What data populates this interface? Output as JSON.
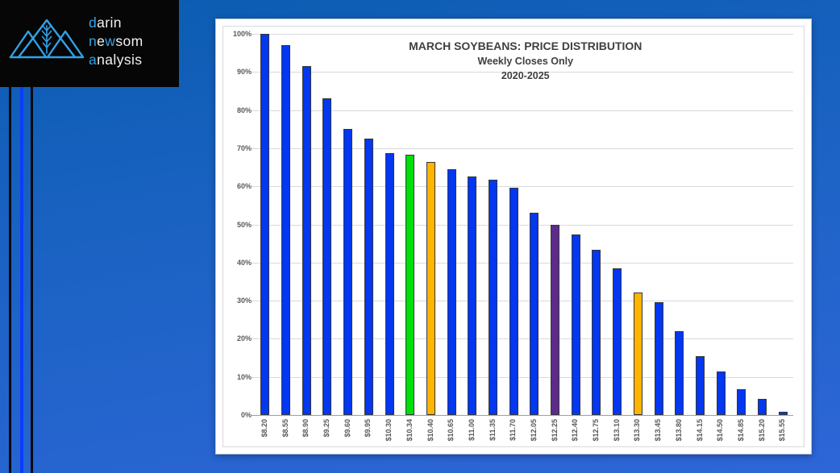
{
  "brand": {
    "accent_color": "#31a2e8",
    "lines": [
      [
        {
          "t": "d",
          "accent": true
        },
        {
          "t": "arin",
          "accent": false
        }
      ],
      [
        {
          "t": "n",
          "accent": true
        },
        {
          "t": "e",
          "accent": false
        },
        {
          "t": "w",
          "accent": true
        },
        {
          "t": "som",
          "accent": false
        }
      ],
      [
        {
          "t": "a",
          "accent": true
        },
        {
          "t": "nalysis",
          "accent": false
        }
      ]
    ]
  },
  "chart_data": {
    "type": "bar",
    "title": "MARCH SOYBEANS: PRICE DISTRIBUTION",
    "subtitle": "Weekly Closes Only",
    "subtitle2": "2020-2025",
    "categories": [
      "$8.20",
      "$8.55",
      "$8.90",
      "$9.25",
      "$9.60",
      "$9.95",
      "$10.30",
      "$10.34",
      "$10.40",
      "$10.65",
      "$11.00",
      "$11.35",
      "$11.70",
      "$12.05",
      "$12.25",
      "$12.40",
      "$12.75",
      "$13.10",
      "$13.30",
      "$13.45",
      "$13.80",
      "$14.15",
      "$14.50",
      "$14.85",
      "$15.20",
      "$15.55"
    ],
    "values": [
      100,
      97,
      91.5,
      83,
      75,
      72.5,
      68.8,
      68.3,
      66.3,
      64.5,
      62.5,
      61.8,
      59.6,
      53,
      49.8,
      47.4,
      43.4,
      38.5,
      32.2,
      29.6,
      22,
      15.4,
      11.4,
      6.8,
      4.3,
      0.9
    ],
    "bar_color_keys": [
      "blue",
      "blue",
      "blue",
      "blue",
      "blue",
      "blue",
      "blue",
      "green",
      "orange",
      "blue",
      "blue",
      "blue",
      "blue",
      "blue",
      "purple",
      "blue",
      "blue",
      "blue",
      "orange",
      "blue",
      "blue",
      "blue",
      "blue",
      "blue",
      "blue",
      "blue"
    ],
    "colors": {
      "blue": "#0437f0",
      "green": "#00df08",
      "orange": "#ffb400",
      "purple": "#5e2b8a"
    },
    "y_ticks": [
      "0%",
      "10%",
      "20%",
      "30%",
      "40%",
      "50%",
      "60%",
      "70%",
      "80%",
      "90%",
      "100%"
    ],
    "ylim": [
      0,
      100
    ],
    "grid": true,
    "xlabel": "",
    "ylabel": "",
    "legend": "none"
  }
}
